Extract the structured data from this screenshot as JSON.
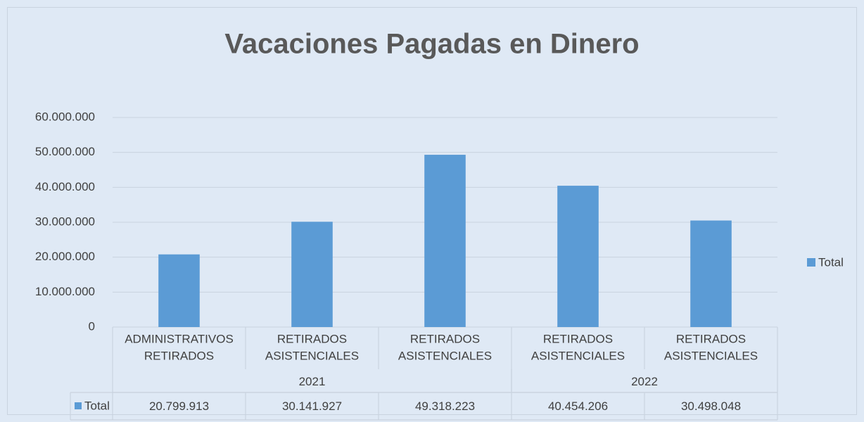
{
  "chart_data": {
    "type": "bar",
    "title": "Vacaciones Pagadas en Dinero",
    "categories": [
      [
        "ADMINISTRATIVOS",
        "RETIRADOS"
      ],
      [
        "RETIRADOS",
        "ASISTENCIALES"
      ],
      [
        "RETIRADOS",
        "ASISTENCIALES"
      ],
      [
        "RETIRADOS",
        "ASISTENCIALES"
      ],
      [
        "RETIRADOS",
        "ASISTENCIALES"
      ]
    ],
    "groups": [
      {
        "label": "2021",
        "size": 3
      },
      {
        "label": "2022",
        "size": 2
      }
    ],
    "series": [
      {
        "name": "Total",
        "color": "#5b9bd5",
        "values": [
          20799913,
          30141927,
          49318223,
          40454206,
          30498048
        ],
        "value_labels": [
          "20.799.913",
          "30.141.927",
          "49.318.223",
          "40.454.206",
          "30.498.048"
        ]
      }
    ],
    "ylim": [
      0,
      60000000
    ],
    "yticks": [
      0,
      {
        "value": 10000000,
        "label": "10.000.000"
      },
      {
        "value": 20000000,
        "label": "20.000.000"
      },
      {
        "value": 30000000,
        "label": "30.000.000"
      },
      {
        "value": 40000000,
        "label": "40.000.000"
      },
      {
        "value": 50000000,
        "label": "50.000.000"
      },
      {
        "value": 60000000,
        "label": "60.000.000"
      }
    ],
    "grid": true,
    "legend": "right",
    "data_table": true
  }
}
